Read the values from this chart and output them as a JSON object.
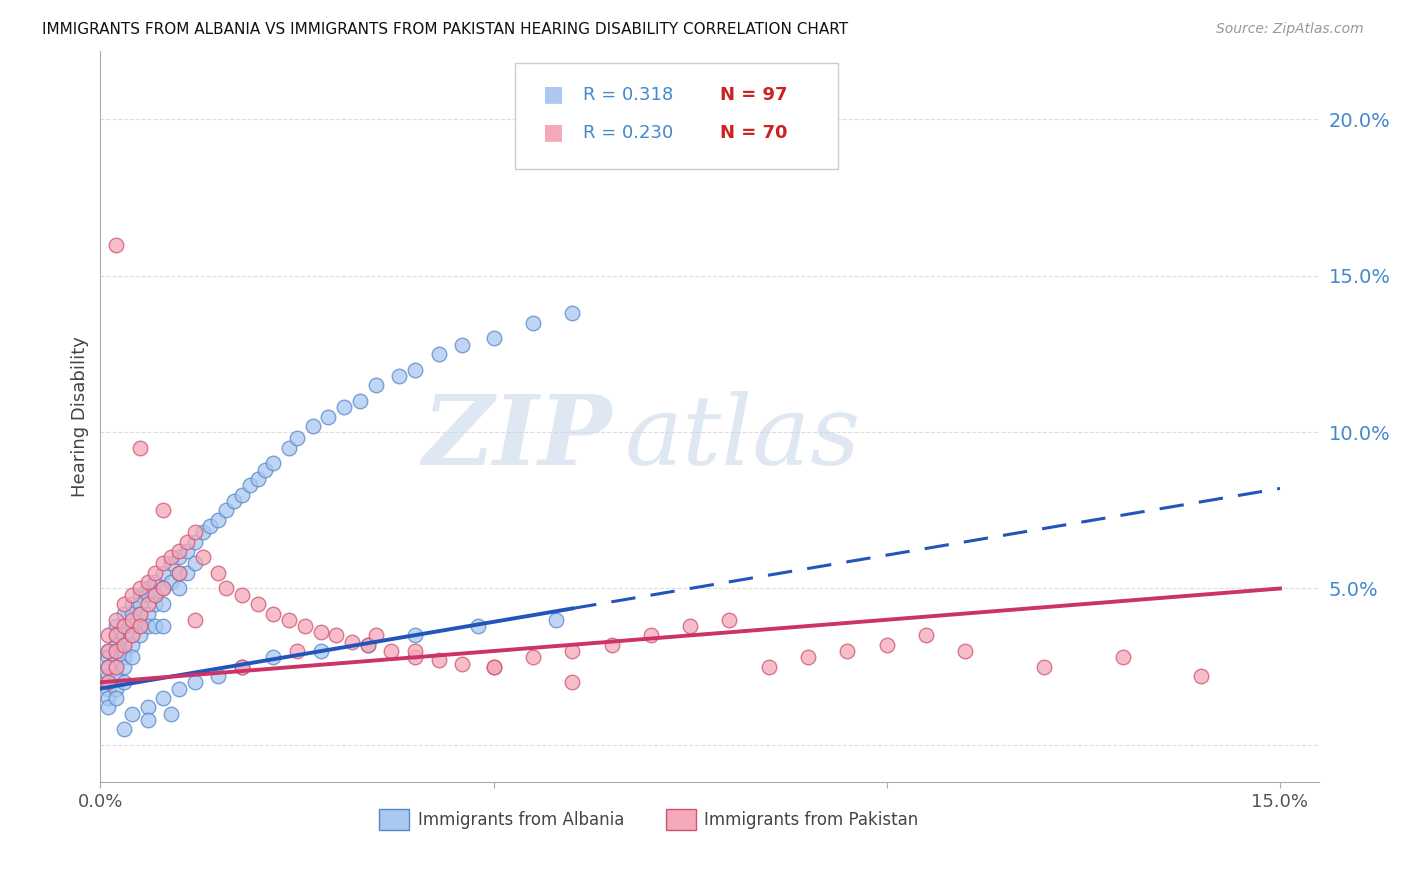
{
  "title": "IMMIGRANTS FROM ALBANIA VS IMMIGRANTS FROM PAKISTAN HEARING DISABILITY CORRELATION CHART",
  "source": "Source: ZipAtlas.com",
  "ylabel": "Hearing Disability",
  "xlim": [
    0.0,
    0.155
  ],
  "ylim": [
    -0.012,
    0.222
  ],
  "albania_color": "#aac8f0",
  "albania_edge_color": "#5588cc",
  "pakistan_color": "#f5a8b8",
  "pakistan_edge_color": "#cc5577",
  "albania_trend_color": "#2255bb",
  "pakistan_trend_color": "#cc3366",
  "albania_R": "0.318",
  "albania_N": "97",
  "pakistan_R": "0.230",
  "pakistan_N": "70",
  "legend_label_albania": "Immigrants from Albania",
  "legend_label_pakistan": "Immigrants from Pakistan",
  "watermark_zip": "ZIP",
  "watermark_atlas": "atlas",
  "watermark_color_zip": "#c5d5ea",
  "watermark_color_atlas": "#c5d5ea",
  "right_axis_color": "#4488cc",
  "grid_color": "#dddddd",
  "right_yticks": [
    0.0,
    0.05,
    0.1,
    0.15,
    0.2
  ],
  "right_yticklabels": [
    "",
    "5.0%",
    "10.0%",
    "15.0%",
    "20.0%"
  ],
  "xticks": [
    0.0,
    0.05,
    0.1,
    0.15
  ],
  "xticklabels": [
    "0.0%",
    "",
    "",
    "15.0%"
  ],
  "alb_x": [
    0.001,
    0.001,
    0.001,
    0.001,
    0.001,
    0.001,
    0.001,
    0.001,
    0.002,
    0.002,
    0.002,
    0.002,
    0.002,
    0.002,
    0.002,
    0.002,
    0.002,
    0.003,
    0.003,
    0.003,
    0.003,
    0.003,
    0.003,
    0.003,
    0.003,
    0.004,
    0.004,
    0.004,
    0.004,
    0.004,
    0.004,
    0.005,
    0.005,
    0.005,
    0.005,
    0.005,
    0.006,
    0.006,
    0.006,
    0.006,
    0.007,
    0.007,
    0.007,
    0.007,
    0.008,
    0.008,
    0.008,
    0.008,
    0.009,
    0.009,
    0.01,
    0.01,
    0.01,
    0.011,
    0.011,
    0.012,
    0.012,
    0.013,
    0.014,
    0.015,
    0.016,
    0.017,
    0.018,
    0.019,
    0.02,
    0.021,
    0.022,
    0.024,
    0.025,
    0.027,
    0.029,
    0.031,
    0.033,
    0.035,
    0.038,
    0.04,
    0.043,
    0.046,
    0.05,
    0.055,
    0.06,
    0.004,
    0.006,
    0.008,
    0.01,
    0.012,
    0.015,
    0.018,
    0.022,
    0.028,
    0.034,
    0.04,
    0.048,
    0.058,
    0.003,
    0.006,
    0.009
  ],
  "alb_y": [
    0.03,
    0.028,
    0.025,
    0.022,
    0.02,
    0.018,
    0.015,
    0.012,
    0.038,
    0.035,
    0.032,
    0.03,
    0.028,
    0.025,
    0.022,
    0.018,
    0.015,
    0.042,
    0.038,
    0.035,
    0.032,
    0.03,
    0.028,
    0.025,
    0.02,
    0.045,
    0.042,
    0.038,
    0.035,
    0.032,
    0.028,
    0.048,
    0.045,
    0.042,
    0.038,
    0.035,
    0.05,
    0.048,
    0.042,
    0.038,
    0.052,
    0.048,
    0.045,
    0.038,
    0.055,
    0.05,
    0.045,
    0.038,
    0.058,
    0.052,
    0.06,
    0.055,
    0.05,
    0.062,
    0.055,
    0.065,
    0.058,
    0.068,
    0.07,
    0.072,
    0.075,
    0.078,
    0.08,
    0.083,
    0.085,
    0.088,
    0.09,
    0.095,
    0.098,
    0.102,
    0.105,
    0.108,
    0.11,
    0.115,
    0.118,
    0.12,
    0.125,
    0.128,
    0.13,
    0.135,
    0.138,
    0.01,
    0.012,
    0.015,
    0.018,
    0.02,
    0.022,
    0.025,
    0.028,
    0.03,
    0.032,
    0.035,
    0.038,
    0.04,
    0.005,
    0.008,
    0.01
  ],
  "pak_x": [
    0.001,
    0.001,
    0.001,
    0.001,
    0.002,
    0.002,
    0.002,
    0.002,
    0.003,
    0.003,
    0.003,
    0.004,
    0.004,
    0.004,
    0.005,
    0.005,
    0.005,
    0.006,
    0.006,
    0.007,
    0.007,
    0.008,
    0.008,
    0.009,
    0.01,
    0.01,
    0.011,
    0.012,
    0.013,
    0.015,
    0.016,
    0.018,
    0.02,
    0.022,
    0.024,
    0.026,
    0.028,
    0.03,
    0.032,
    0.034,
    0.037,
    0.04,
    0.043,
    0.046,
    0.05,
    0.055,
    0.06,
    0.065,
    0.07,
    0.075,
    0.08,
    0.085,
    0.09,
    0.095,
    0.1,
    0.105,
    0.11,
    0.12,
    0.13,
    0.14,
    0.002,
    0.005,
    0.008,
    0.012,
    0.018,
    0.025,
    0.035,
    0.04,
    0.05,
    0.06
  ],
  "pak_y": [
    0.035,
    0.03,
    0.025,
    0.02,
    0.04,
    0.035,
    0.03,
    0.025,
    0.045,
    0.038,
    0.032,
    0.048,
    0.04,
    0.035,
    0.05,
    0.042,
    0.038,
    0.052,
    0.045,
    0.055,
    0.048,
    0.058,
    0.05,
    0.06,
    0.062,
    0.055,
    0.065,
    0.068,
    0.06,
    0.055,
    0.05,
    0.048,
    0.045,
    0.042,
    0.04,
    0.038,
    0.036,
    0.035,
    0.033,
    0.032,
    0.03,
    0.028,
    0.027,
    0.026,
    0.025,
    0.028,
    0.03,
    0.032,
    0.035,
    0.038,
    0.04,
    0.025,
    0.028,
    0.03,
    0.032,
    0.035,
    0.03,
    0.025,
    0.028,
    0.022,
    0.16,
    0.095,
    0.075,
    0.04,
    0.025,
    0.03,
    0.035,
    0.03,
    0.025,
    0.02
  ]
}
